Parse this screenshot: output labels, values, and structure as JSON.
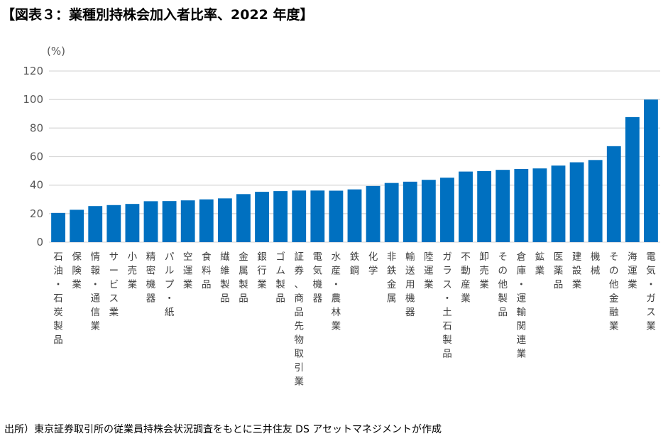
{
  "title": "【図表３：業種別持株会加入者比率、2022 年度】",
  "source": "出所）東京証券取引所の従業員持株会状況調査をもとに三井住友 DS アセットマネジメントが作成",
  "chart_data": {
    "type": "bar",
    "title": "【図表３：業種別持株会加入者比率、2022 年度】",
    "ylabel": "(%)",
    "ylim": [
      0,
      120
    ],
    "yticks": [
      0,
      20,
      40,
      60,
      80,
      100,
      120
    ],
    "grid": true,
    "bar_color": "#0070C0",
    "categories": [
      "石油・石炭製品",
      "保険業",
      "情報・通信業",
      "サービス業",
      "小売業",
      "精密機器",
      "パルプ・紙",
      "空運業",
      "食料品",
      "繊維製品",
      "金属製品",
      "銀行業",
      "ゴム製品",
      "証券、商品先物取引業",
      "電気機器",
      "水産・農林業",
      "鉄鋼",
      "化学",
      "非鉄金属",
      "輸送用機器",
      "陸運業",
      "ガラス・土石製品",
      "不動産業",
      "卸売業",
      "その他製品",
      "倉庫・運輸関連業",
      "鉱業",
      "医薬品",
      "建設業",
      "機械",
      "その他金融業",
      "海運業",
      "電気・ガス業"
    ],
    "values": [
      20.5,
      22.7,
      25.3,
      26.0,
      26.8,
      28.7,
      28.8,
      29.3,
      30.0,
      30.7,
      33.7,
      35.3,
      35.8,
      36.2,
      36.2,
      36.1,
      37.0,
      39.4,
      41.5,
      42.4,
      43.7,
      45.2,
      49.5,
      49.8,
      50.7,
      51.3,
      51.7,
      53.7,
      56.0,
      57.6,
      67.3,
      87.7,
      100.0
    ]
  }
}
